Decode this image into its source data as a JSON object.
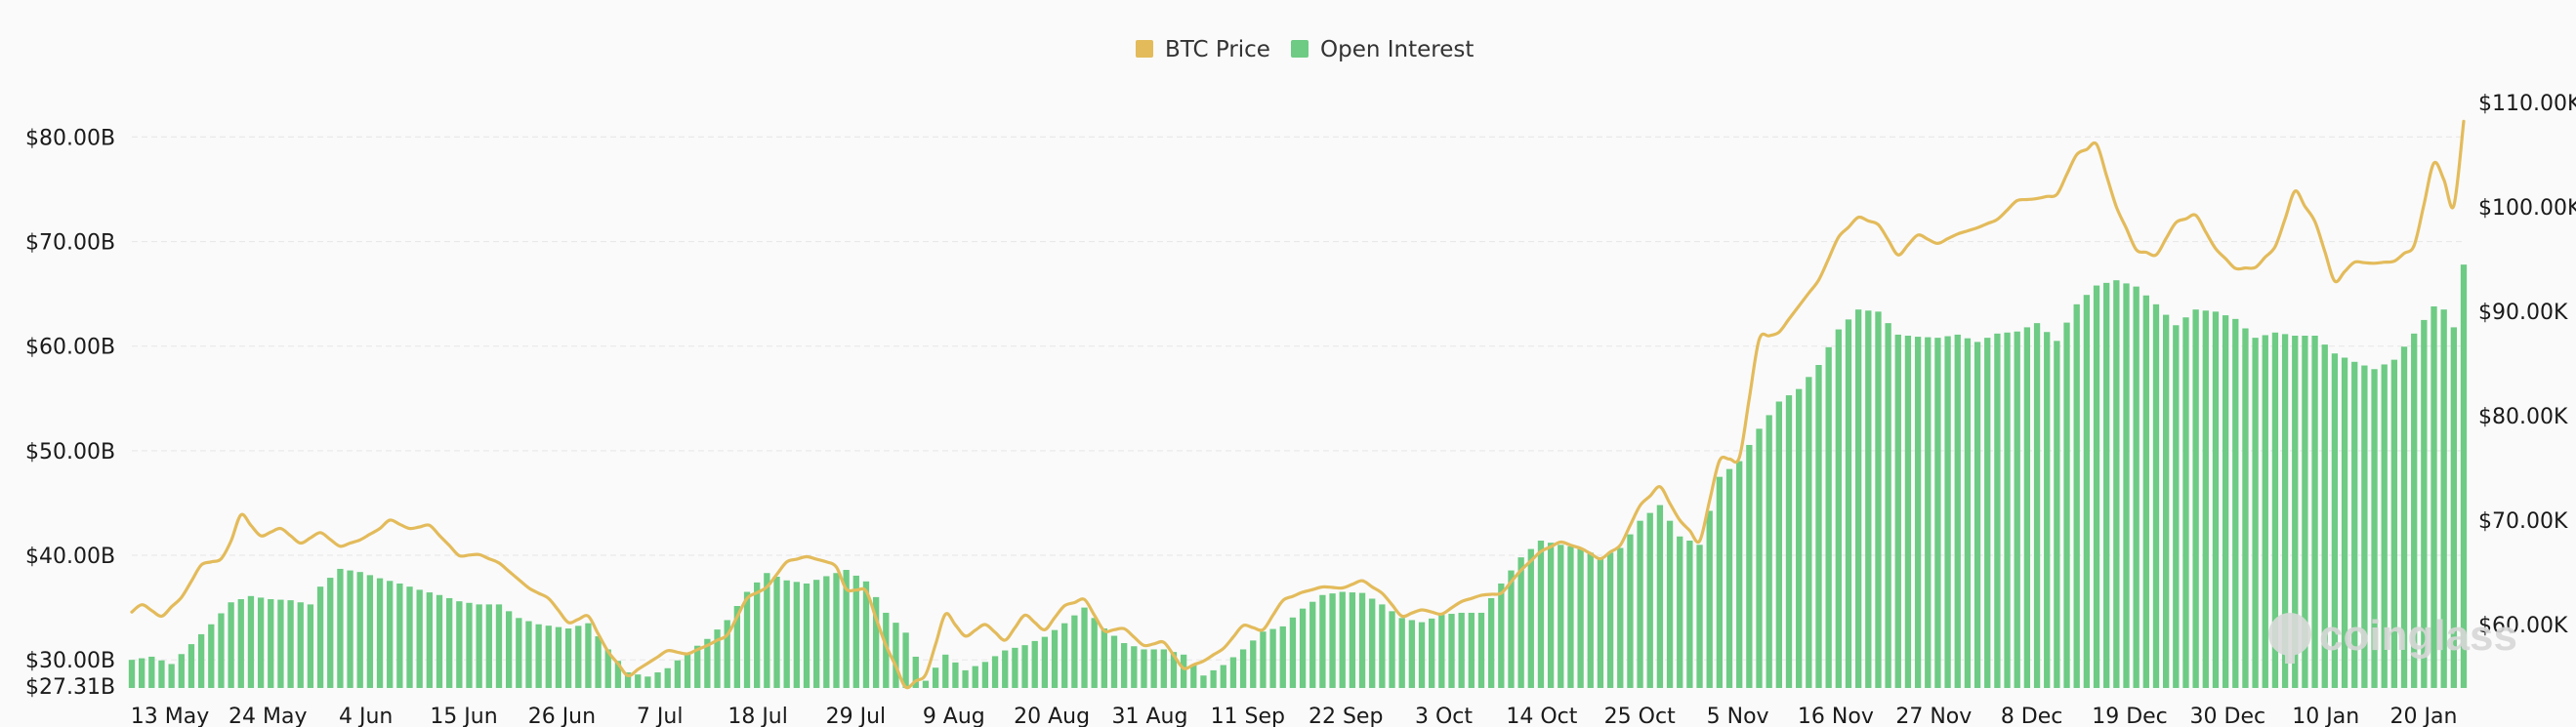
{
  "chart_data": {
    "type": "bar",
    "legend": {
      "placement": "top-center",
      "items": [
        {
          "name": "BTC Price",
          "color": "#e3bb5b",
          "icon": "square-swatch"
        },
        {
          "name": "Open Interest",
          "color": "#6dcb84",
          "icon": "square-swatch"
        }
      ]
    },
    "x_ticks": [
      "13 May",
      "24 May",
      "4 Jun",
      "15 Jun",
      "26 Jun",
      "7 Jul",
      "18 Jul",
      "29 Jul",
      "9 Aug",
      "20 Aug",
      "31 Aug",
      "11 Sep",
      "22 Sep",
      "3 Oct",
      "14 Oct",
      "25 Oct",
      "5 Nov",
      "16 Nov",
      "27 Nov",
      "8 Dec",
      "19 Dec",
      "30 Dec",
      "10 Jan",
      "20 Jan"
    ],
    "y_left": {
      "ticks": [
        "$80.00B",
        "$70.00B",
        "$60.00B",
        "$50.00B",
        "$40.00B",
        "$30.00B"
      ],
      "tick_values": [
        80,
        70,
        60,
        50,
        40,
        30
      ],
      "min_label": "$27.31B",
      "range": [
        27.31,
        80
      ]
    },
    "y_right": {
      "ticks": [
        "$110.00K",
        "$100.00K",
        "$90.00K",
        "$80.00K",
        "$70.00K",
        "$60.00K"
      ],
      "tick_values": [
        110,
        100,
        90,
        80,
        70,
        60
      ]
    },
    "grid": "horizontal dashed",
    "watermark": "coinglass",
    "series": [
      {
        "name": "Open Interest",
        "axis": "left",
        "unit": "B USD",
        "kind": "bar",
        "anchors": [
          [
            0,
            30.0
          ],
          [
            2,
            30.3
          ],
          [
            4,
            29.6
          ],
          [
            6,
            31.5
          ],
          [
            8,
            33.4
          ],
          [
            10,
            35.5
          ],
          [
            12,
            36.1
          ],
          [
            14,
            35.8
          ],
          [
            16,
            35.7
          ],
          [
            18,
            35.3
          ],
          [
            19,
            37.0
          ],
          [
            21,
            38.7
          ],
          [
            23,
            38.4
          ],
          [
            25,
            37.8
          ],
          [
            27,
            37.3
          ],
          [
            29,
            36.7
          ],
          [
            31,
            36.2
          ],
          [
            33,
            35.6
          ],
          [
            35,
            35.3
          ],
          [
            37,
            35.3
          ],
          [
            39,
            34.0
          ],
          [
            41,
            33.4
          ],
          [
            44,
            33.0
          ],
          [
            46,
            33.5
          ],
          [
            48,
            31.0
          ],
          [
            50,
            28.8
          ],
          [
            52,
            28.4
          ],
          [
            54,
            29.2
          ],
          [
            56,
            30.7
          ],
          [
            58,
            32.0
          ],
          [
            60,
            33.8
          ],
          [
            62,
            36.5
          ],
          [
            64,
            38.3
          ],
          [
            66,
            37.6
          ],
          [
            68,
            37.3
          ],
          [
            70,
            38.0
          ],
          [
            72,
            38.6
          ],
          [
            74,
            37.5
          ],
          [
            76,
            34.5
          ],
          [
            78,
            32.6
          ],
          [
            80,
            28.0
          ],
          [
            82,
            30.5
          ],
          [
            84,
            29.0
          ],
          [
            86,
            29.8
          ],
          [
            88,
            30.9
          ],
          [
            90,
            31.4
          ],
          [
            92,
            32.2
          ],
          [
            94,
            33.5
          ],
          [
            96,
            35.0
          ],
          [
            98,
            33.0
          ],
          [
            100,
            31.6
          ],
          [
            102,
            31.0
          ],
          [
            104,
            31.0
          ],
          [
            106,
            30.5
          ],
          [
            108,
            28.5
          ],
          [
            110,
            29.5
          ],
          [
            112,
            31.0
          ],
          [
            114,
            32.7
          ],
          [
            116,
            33.2
          ],
          [
            118,
            34.9
          ],
          [
            120,
            36.2
          ],
          [
            122,
            36.5
          ],
          [
            124,
            36.4
          ],
          [
            126,
            35.3
          ],
          [
            128,
            34.0
          ],
          [
            130,
            33.6
          ],
          [
            132,
            34.3
          ],
          [
            134,
            34.5
          ],
          [
            136,
            34.5
          ],
          [
            138,
            37.3
          ],
          [
            140,
            39.8
          ],
          [
            142,
            41.4
          ],
          [
            144,
            41.0
          ],
          [
            146,
            40.7
          ],
          [
            148,
            39.8
          ],
          [
            150,
            40.7
          ],
          [
            152,
            43.3
          ],
          [
            154,
            44.8
          ],
          [
            156,
            41.8
          ],
          [
            158,
            41.0
          ],
          [
            160,
            47.5
          ],
          [
            162,
            49.0
          ],
          [
            164,
            52.1
          ],
          [
            166,
            54.7
          ],
          [
            168,
            55.9
          ],
          [
            170,
            58.2
          ],
          [
            172,
            61.6
          ],
          [
            174,
            63.5
          ],
          [
            176,
            63.3
          ],
          [
            178,
            61.1
          ],
          [
            180,
            60.9
          ],
          [
            182,
            60.8
          ],
          [
            184,
            61.1
          ],
          [
            186,
            60.4
          ],
          [
            188,
            61.2
          ],
          [
            190,
            61.4
          ],
          [
            192,
            62.2
          ],
          [
            194,
            60.5
          ],
          [
            196,
            64.0
          ],
          [
            198,
            65.8
          ],
          [
            200,
            66.3
          ],
          [
            202,
            65.7
          ],
          [
            204,
            64.0
          ],
          [
            206,
            62.0
          ],
          [
            208,
            63.5
          ],
          [
            210,
            63.3
          ],
          [
            212,
            62.6
          ],
          [
            214,
            60.8
          ],
          [
            216,
            61.3
          ],
          [
            218,
            61.0
          ],
          [
            220,
            61.0
          ],
          [
            222,
            59.3
          ],
          [
            224,
            58.5
          ],
          [
            226,
            57.8
          ],
          [
            228,
            58.7
          ],
          [
            230,
            61.2
          ],
          [
            232,
            63.8
          ],
          [
            233,
            63.5
          ],
          [
            234,
            61.8
          ],
          [
            235,
            67.8
          ]
        ]
      },
      {
        "name": "BTC Price",
        "axis": "right",
        "unit": "K USD",
        "kind": "line",
        "anchors": [
          [
            0,
            61.2
          ],
          [
            1,
            61.9
          ],
          [
            3,
            60.8
          ],
          [
            5,
            62.6
          ],
          [
            7,
            65.7
          ],
          [
            9,
            66.3
          ],
          [
            10,
            68.0
          ],
          [
            11,
            70.5
          ],
          [
            13,
            68.5
          ],
          [
            15,
            69.2
          ],
          [
            17,
            67.8
          ],
          [
            19,
            68.8
          ],
          [
            21,
            67.5
          ],
          [
            23,
            68.1
          ],
          [
            25,
            69.2
          ],
          [
            26,
            70.0
          ],
          [
            28,
            69.2
          ],
          [
            30,
            69.5
          ],
          [
            33,
            66.6
          ],
          [
            35,
            66.7
          ],
          [
            37,
            65.9
          ],
          [
            40,
            63.5
          ],
          [
            42,
            62.5
          ],
          [
            44,
            60.2
          ],
          [
            46,
            60.8
          ],
          [
            48,
            57.4
          ],
          [
            50,
            55.1
          ],
          [
            52,
            56.3
          ],
          [
            54,
            57.5
          ],
          [
            56,
            57.2
          ],
          [
            58,
            58.0
          ],
          [
            60,
            59.0
          ],
          [
            62,
            62.5
          ],
          [
            64,
            63.6
          ],
          [
            66,
            66.0
          ],
          [
            68,
            66.5
          ],
          [
            70,
            66.0
          ],
          [
            71,
            65.5
          ],
          [
            72,
            63.4
          ],
          [
            74,
            63.2
          ],
          [
            76,
            58.0
          ],
          [
            78,
            54.0
          ],
          [
            80,
            55.2
          ],
          [
            82,
            61.0
          ],
          [
            84,
            58.9
          ],
          [
            86,
            60.0
          ],
          [
            88,
            58.5
          ],
          [
            90,
            60.9
          ],
          [
            92,
            59.5
          ],
          [
            94,
            61.8
          ],
          [
            96,
            62.4
          ],
          [
            98,
            59.4
          ],
          [
            100,
            59.6
          ],
          [
            102,
            58.0
          ],
          [
            104,
            58.3
          ],
          [
            106,
            55.8
          ],
          [
            108,
            56.5
          ],
          [
            110,
            57.7
          ],
          [
            112,
            59.9
          ],
          [
            114,
            59.5
          ],
          [
            116,
            62.3
          ],
          [
            118,
            63.1
          ],
          [
            120,
            63.6
          ],
          [
            122,
            63.5
          ],
          [
            124,
            64.2
          ],
          [
            126,
            63.0
          ],
          [
            128,
            60.8
          ],
          [
            130,
            61.4
          ],
          [
            132,
            61.0
          ],
          [
            134,
            62.2
          ],
          [
            136,
            62.8
          ],
          [
            138,
            63.0
          ],
          [
            140,
            65.2
          ],
          [
            142,
            67.0
          ],
          [
            144,
            67.9
          ],
          [
            146,
            67.3
          ],
          [
            148,
            66.3
          ],
          [
            150,
            67.6
          ],
          [
            152,
            71.4
          ],
          [
            154,
            73.2
          ],
          [
            156,
            70.0
          ],
          [
            158,
            68.0
          ],
          [
            160,
            75.7
          ],
          [
            162,
            76.0
          ],
          [
            164,
            87.3
          ],
          [
            166,
            88.0
          ],
          [
            168,
            90.5
          ],
          [
            170,
            93.0
          ],
          [
            172,
            97.1
          ],
          [
            174,
            99.0
          ],
          [
            176,
            98.3
          ],
          [
            178,
            95.4
          ],
          [
            180,
            97.3
          ],
          [
            182,
            96.5
          ],
          [
            184,
            97.4
          ],
          [
            186,
            98.0
          ],
          [
            188,
            98.8
          ],
          [
            190,
            100.6
          ],
          [
            192,
            100.8
          ],
          [
            194,
            101.2
          ],
          [
            196,
            105.0
          ],
          [
            198,
            106.0
          ],
          [
            200,
            100.0
          ],
          [
            202,
            95.9
          ],
          [
            204,
            95.4
          ],
          [
            206,
            98.5
          ],
          [
            208,
            99.2
          ],
          [
            210,
            96.0
          ],
          [
            212,
            94.1
          ],
          [
            214,
            94.2
          ],
          [
            216,
            96.2
          ],
          [
            218,
            101.5
          ],
          [
            220,
            98.6
          ],
          [
            222,
            92.9
          ],
          [
            224,
            94.7
          ],
          [
            226,
            94.6
          ],
          [
            228,
            94.8
          ],
          [
            230,
            96.3
          ],
          [
            232,
            104.2
          ],
          [
            233,
            102.6
          ],
          [
            234,
            100.1
          ],
          [
            235,
            108.2
          ]
        ]
      }
    ]
  }
}
